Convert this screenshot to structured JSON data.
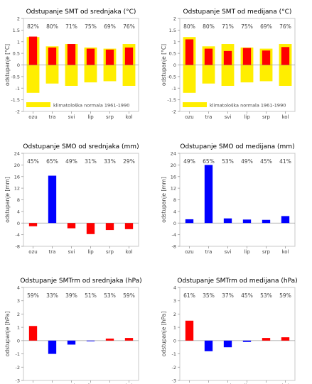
{
  "chart_data": [
    {
      "type": "bar",
      "title": "Odstupanje SMT od srednjaka (°C)",
      "ylabel": "odstupanje [°C]",
      "categories": [
        "ozu",
        "tra",
        "svi",
        "lip",
        "srp",
        "kol"
      ],
      "ylim": [
        -2,
        2
      ],
      "yticks": [
        2,
        1.5,
        1,
        0.5,
        0,
        -0.5,
        -1,
        -1.5,
        -2
      ],
      "series": [
        {
          "values": [
            1.22,
            0.75,
            0.9,
            0.7,
            0.66,
            0.75
          ]
        }
      ],
      "band": {
        "upper": [
          1.2,
          0.8,
          0.9,
          0.75,
          0.7,
          0.9
        ],
        "lower": [
          -1.2,
          -0.8,
          -0.9,
          -0.75,
          -0.7,
          -0.9
        ]
      },
      "percent_labels": [
        "82%",
        "80%",
        "71%",
        "75%",
        "69%",
        "76%"
      ],
      "legend": {
        "label": "klimatološka normala 1961-1990",
        "placement": "bottom-left"
      },
      "colors": {
        "pos": "#ff0000",
        "neg": "#0000ff",
        "band": "#ffee00"
      }
    },
    {
      "type": "bar",
      "title": "Odstupanje SMT od medijana (°C)",
      "ylabel": "odstupanje [°C]",
      "categories": [
        "ozu",
        "tra",
        "svi",
        "lip",
        "srp",
        "kol"
      ],
      "ylim": [
        -2,
        2
      ],
      "yticks": [
        2,
        1.5,
        1,
        0.5,
        0,
        -0.5,
        -1,
        -1.5,
        -2
      ],
      "series": [
        {
          "values": [
            1.1,
            0.7,
            0.6,
            0.73,
            0.62,
            0.77
          ]
        }
      ],
      "band": {
        "upper": [
          1.2,
          0.8,
          0.9,
          0.75,
          0.7,
          0.9
        ],
        "lower": [
          -1.2,
          -0.8,
          -0.9,
          -0.75,
          -0.7,
          -0.9
        ]
      },
      "percent_labels": [
        "80%",
        "80%",
        "71%",
        "75%",
        "69%",
        "76%"
      ],
      "legend": {
        "label": "klimatološka normala 1961-1990",
        "placement": "bottom-left"
      },
      "colors": {
        "pos": "#ff0000",
        "neg": "#0000ff",
        "band": "#ffee00"
      }
    },
    {
      "type": "bar",
      "title": "Odstupanje SMO od srednjaka (mm)",
      "ylabel": "odstupanje [mm]",
      "categories": [
        "ozu",
        "tra",
        "svi",
        "lip",
        "srp",
        "kol"
      ],
      "ylim": [
        -8,
        24
      ],
      "yticks": [
        24,
        20,
        16,
        12,
        8,
        4,
        0,
        -4,
        -8
      ],
      "series": [
        {
          "values": [
            -1.1,
            16.3,
            -1.8,
            -3.8,
            -2.4,
            -2.1
          ]
        }
      ],
      "percent_labels": [
        "45%",
        "65%",
        "49%",
        "31%",
        "33%",
        "29%"
      ],
      "colors": {
        "pos": "#0000ff",
        "neg": "#ff0000"
      }
    },
    {
      "type": "bar",
      "title": "Odstupanje SMO od medijana (mm)",
      "ylabel": "odstupanje [mm]",
      "categories": [
        "ozu",
        "tra",
        "svi",
        "lip",
        "srp",
        "kol"
      ],
      "ylim": [
        -8,
        24
      ],
      "yticks": [
        24,
        20,
        16,
        12,
        8,
        4,
        0,
        -4,
        -8
      ],
      "series": [
        {
          "values": [
            1.3,
            20.0,
            1.6,
            1.2,
            1.1,
            2.4
          ]
        }
      ],
      "percent_labels": [
        "49%",
        "65%",
        "53%",
        "49%",
        "45%",
        "41%"
      ],
      "colors": {
        "pos": "#0000ff",
        "neg": "#ff0000"
      }
    },
    {
      "type": "bar",
      "title": "Odstupanje SMTrm od srednjaka (hPa)",
      "ylabel": "odstupanje [hPa]",
      "categories": [
        "ozu",
        "tra",
        "svi",
        "lip",
        "srp",
        "kol"
      ],
      "ylim": [
        -3,
        4
      ],
      "yticks": [
        4,
        3,
        2,
        1,
        0,
        -1,
        -2,
        -3
      ],
      "series": [
        {
          "values": [
            1.1,
            -1.0,
            -0.3,
            -0.05,
            0.15,
            0.2
          ]
        }
      ],
      "percent_labels": [
        "59%",
        "33%",
        "39%",
        "51%",
        "53%",
        "59%"
      ],
      "colors": {
        "pos": "#ff0000",
        "neg": "#0000ff"
      }
    },
    {
      "type": "bar",
      "title": "Odstupanje SMTrm od medijana (hPa)",
      "ylabel": "odstupanje [hPa]",
      "categories": [
        "ozu",
        "tra",
        "svi",
        "lip",
        "srp",
        "kol"
      ],
      "ylim": [
        -3,
        4
      ],
      "yticks": [
        4,
        3,
        2,
        1,
        0,
        -1,
        -2,
        -3
      ],
      "series": [
        {
          "values": [
            1.5,
            -0.8,
            -0.5,
            -0.1,
            0.2,
            0.25
          ]
        }
      ],
      "percent_labels": [
        "61%",
        "35%",
        "37%",
        "45%",
        "53%",
        "59%"
      ],
      "colors": {
        "pos": "#ff0000",
        "neg": "#0000ff"
      }
    }
  ]
}
